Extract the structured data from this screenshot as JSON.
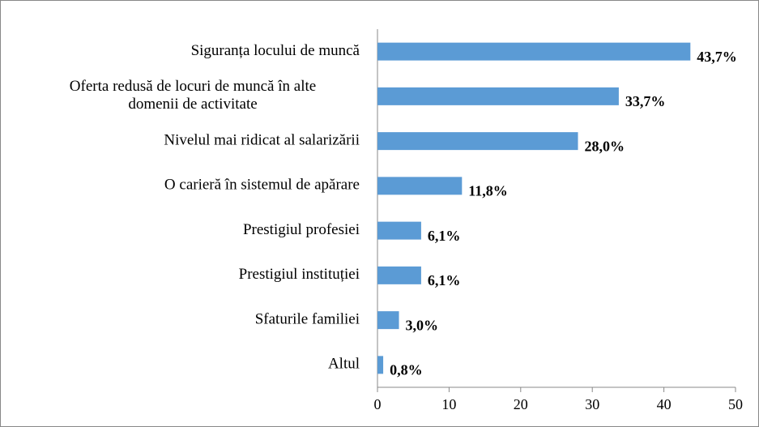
{
  "chart_data": {
    "type": "bar",
    "orientation": "horizontal",
    "categories": [
      "Siguranța locului de muncă",
      "Oferta redusă de locuri de muncă în alte\ndomenii de activitate",
      "Nivelul mai ridicat al salarizării",
      "O carieră în sistemul de apărare",
      "Prestigiul profesiei",
      "Prestigiul instituției",
      "Sfaturile familiei",
      "Altul"
    ],
    "values": [
      43.7,
      33.7,
      28.0,
      11.8,
      6.1,
      6.1,
      3.0,
      0.8
    ],
    "value_labels": [
      "43,7%",
      "33,7%",
      "28,0%",
      "11,8%",
      "6,1%",
      "6,1%",
      "3,0%",
      "0,8%"
    ],
    "color": "#5b9bd5",
    "xlim": [
      0,
      50
    ],
    "xticks": [
      0,
      10,
      20,
      30,
      40,
      50
    ]
  }
}
